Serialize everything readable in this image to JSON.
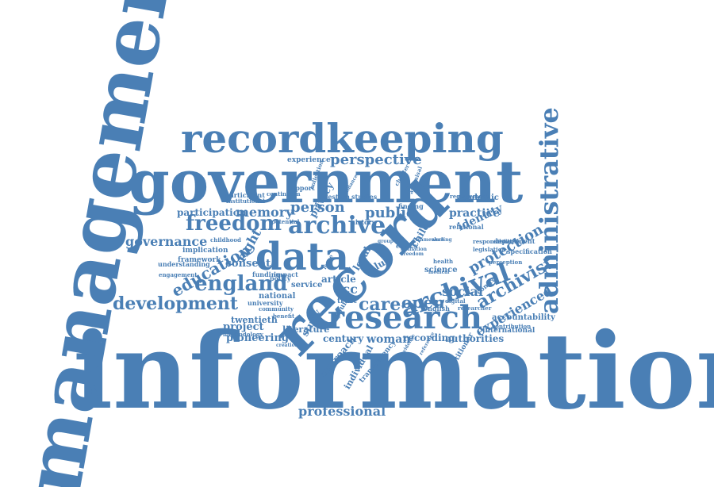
{
  "cloud": {
    "color": "#4a7fb5",
    "words": [
      {
        "text": "information",
        "rank": 1
      },
      {
        "text": "management",
        "rank": 2
      },
      {
        "text": "government",
        "rank": 3
      },
      {
        "text": "record",
        "rank": 4
      },
      {
        "text": "recordkeeping",
        "rank": 5
      },
      {
        "text": "administrative",
        "rank": 6
      },
      {
        "text": "data",
        "rank": 7
      },
      {
        "text": "research",
        "rank": 8
      },
      {
        "text": "archival",
        "rank": 9
      },
      {
        "text": "archive",
        "rank": 10
      },
      {
        "text": "england",
        "rank": 11
      },
      {
        "text": "development",
        "rank": 12
      },
      {
        "text": "freedom",
        "rank": 13
      },
      {
        "text": "archivist",
        "rank": 14
      },
      {
        "text": "education",
        "rank": 15
      },
      {
        "text": "perspective",
        "rank": 16
      },
      {
        "text": "protection",
        "rank": 17
      },
      {
        "text": "care",
        "rank": 18
      },
      {
        "text": "open",
        "rank": 19
      },
      {
        "text": "experienced",
        "rank": 20
      },
      {
        "text": "professional",
        "rank": 21
      },
      {
        "text": "memory",
        "rank": 22
      },
      {
        "text": "person",
        "rank": 23
      },
      {
        "text": "public",
        "rank": 24
      },
      {
        "text": "governance",
        "rank": 25
      },
      {
        "text": "practice",
        "rank": 26
      },
      {
        "text": "identity",
        "rank": 27
      },
      {
        "text": "social",
        "rank": 28
      },
      {
        "text": "acc",
        "rank": 29
      },
      {
        "text": "right",
        "rank": 30
      },
      {
        "text": "consent",
        "rank": 31
      },
      {
        "text": "project",
        "rank": 32
      },
      {
        "text": "pioneering",
        "rank": 33
      },
      {
        "text": "twentieth",
        "rank": 34
      },
      {
        "text": "participation",
        "rank": 35
      },
      {
        "text": "century",
        "rank": 36
      },
      {
        "text": "woman",
        "rank": 37
      },
      {
        "text": "recording",
        "rank": 38
      },
      {
        "text": "authorities",
        "rank": 39
      },
      {
        "text": "article",
        "rank": 40
      },
      {
        "text": "study",
        "rank": 41
      },
      {
        "text": "approach",
        "rank": 42
      },
      {
        "text": "individual",
        "rank": 43
      },
      {
        "text": "science",
        "rank": 44
      },
      {
        "text": "accountability",
        "rank": 45
      },
      {
        "text": "international",
        "rank": 46
      },
      {
        "text": "implication",
        "rank": 47
      },
      {
        "text": "framework",
        "rank": 48
      },
      {
        "text": "experience",
        "rank": 49
      },
      {
        "text": "funding",
        "rank": 50
      },
      {
        "text": "impact",
        "rank": 51
      },
      {
        "text": "national",
        "rank": 52
      },
      {
        "text": "literature",
        "rank": 53
      },
      {
        "text": "service",
        "rank": 54
      },
      {
        "text": "child",
        "rank": 55
      },
      {
        "text": "local",
        "rank": 56
      },
      {
        "text": "value",
        "rank": 57
      },
      {
        "text": "trust",
        "rank": 58
      },
      {
        "text": "university",
        "rank": 59
      },
      {
        "text": "policy",
        "rank": 60
      },
      {
        "text": "privacy",
        "rank": 61
      },
      {
        "text": "academic",
        "rank": 62
      },
      {
        "text": "relational",
        "rank": 63
      },
      {
        "text": "department",
        "rank": 64
      },
      {
        "text": "specification",
        "rank": 65
      },
      {
        "text": "english",
        "rank": 66
      },
      {
        "text": "institutional",
        "rank": 67
      },
      {
        "text": "engagement",
        "rank": 68
      },
      {
        "text": "understanding",
        "rank": 69
      },
      {
        "text": "benefit",
        "rank": 70
      },
      {
        "text": "support",
        "rank": 71
      },
      {
        "text": "question",
        "rank": 72
      },
      {
        "text": "studies",
        "rank": 73
      },
      {
        "text": "participant",
        "rank": 74
      },
      {
        "text": "potential",
        "rank": 75
      },
      {
        "text": "ethics",
        "rank": 76
      },
      {
        "text": "history",
        "rank": 77
      },
      {
        "text": "health",
        "rank": 78
      },
      {
        "text": "young",
        "rank": 79
      },
      {
        "text": "finding",
        "rank": 80
      },
      {
        "text": "chapter",
        "rank": 81
      },
      {
        "text": "methodology",
        "rank": 82
      },
      {
        "text": "requirement",
        "rank": 83
      },
      {
        "text": "transparency",
        "rank": 84
      },
      {
        "text": "legislation",
        "rank": 85
      },
      {
        "text": "perception",
        "rank": 86
      },
      {
        "text": "responsibilities",
        "rank": 87
      },
      {
        "text": "contribution",
        "rank": 88
      },
      {
        "text": "continuum",
        "rank": 89
      },
      {
        "text": "childhood",
        "rank": 90
      },
      {
        "text": "appraisal",
        "rank": 91
      },
      {
        "text": "control",
        "rank": 92
      },
      {
        "text": "digital",
        "rank": 93
      },
      {
        "text": "medical",
        "rank": 94
      },
      {
        "text": "sharing",
        "rank": 95
      },
      {
        "text": "group",
        "rank": 96
      },
      {
        "text": "issue",
        "rank": 97
      },
      {
        "text": "collection",
        "rank": 98
      },
      {
        "text": "framework",
        "rank": 99
      },
      {
        "text": "practitioner",
        "rank": 100
      },
      {
        "text": "researcher",
        "rank": 101
      },
      {
        "text": "community",
        "rank": 102
      },
      {
        "text": "creation",
        "rank": 103
      },
      {
        "text": "evidence",
        "rank": 104
      },
      {
        "text": "affiliation",
        "rank": 105
      },
      {
        "text": "guidance",
        "rank": 106
      },
      {
        "text": "reference",
        "rank": 107
      },
      {
        "text": "freedom",
        "rank": 108
      }
    ]
  }
}
